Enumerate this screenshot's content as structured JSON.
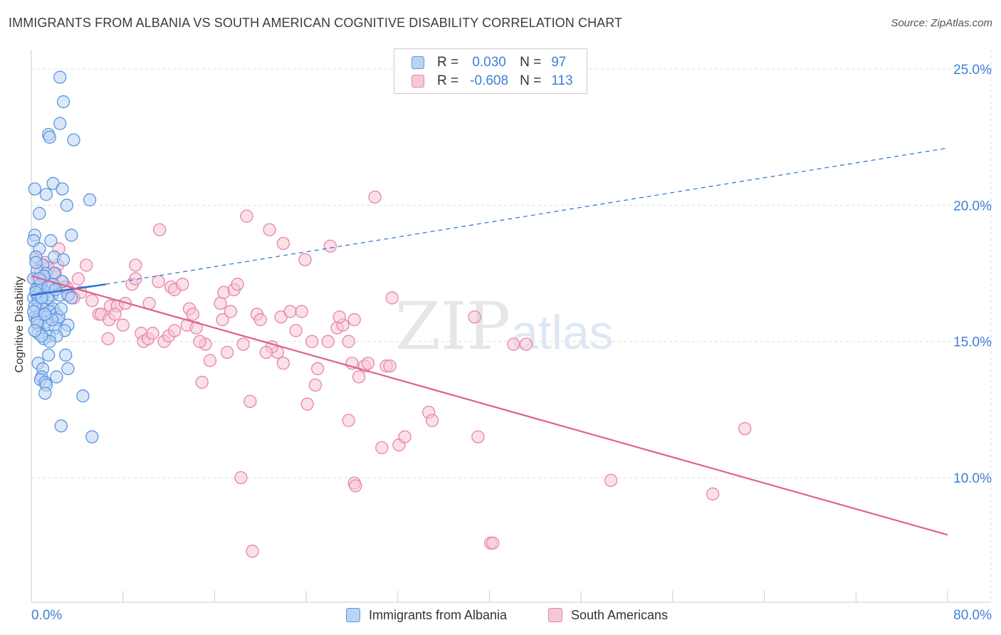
{
  "title": "IMMIGRANTS FROM ALBANIA VS SOUTH AMERICAN COGNITIVE DISABILITY CORRELATION CHART",
  "source": "Source: ZipAtlas.com",
  "watermark": {
    "zip": "ZIP",
    "atlas": "atlas"
  },
  "colors": {
    "blue": "#5b95e0",
    "blue_fill": "#bcd4f4",
    "blue_line": "#2f6fd0",
    "pink": "#e884a6",
    "pink_fill": "#f6c7d7",
    "pink_line": "#e0608e",
    "tick_text": "#3f7fd6",
    "grid": "#dddddd"
  },
  "legend": {
    "rows": [
      {
        "r_label": "R =",
        "r_value": "0.030",
        "n_label": "N =",
        "n_value": "97"
      },
      {
        "r_label": "R =",
        "r_value": "-0.608",
        "n_label": "N =",
        "n_value": "113"
      }
    ]
  },
  "bottom_legend": [
    "Immigrants from Albania",
    "South Americans"
  ],
  "chart_data": {
    "type": "scatter",
    "title": "IMMIGRANTS FROM ALBANIA VS SOUTH AMERICAN COGNITIVE DISABILITY CORRELATION CHART",
    "xlabel": "",
    "ylabel": "Cognitive Disability",
    "xlim": [
      0,
      80
    ],
    "ylim": [
      5.5,
      25.9
    ],
    "x_tick_labels": [
      {
        "value": 0,
        "label": "0.0%"
      },
      {
        "value": 80,
        "label": "80.0%"
      }
    ],
    "y_tick_labels": [
      {
        "value": 25,
        "label": "25.0%"
      },
      {
        "value": 20,
        "label": "20.0%"
      },
      {
        "value": 15,
        "label": "15.0%"
      },
      {
        "value": 10,
        "label": "10.0%"
      }
    ],
    "grid": true,
    "series": [
      {
        "name": "Immigrants from Albania",
        "R": 0.03,
        "N": 97,
        "trend": {
          "solid": [
            [
              0,
              16.7
            ],
            [
              6.5,
              17.1
            ]
          ],
          "dashed": [
            [
              6.5,
              17.1
            ],
            [
              80,
              22.1
            ]
          ]
        },
        "points": [
          [
            2.5,
            24.7
          ],
          [
            2.8,
            23.8
          ],
          [
            2.5,
            23.0
          ],
          [
            1.5,
            22.6
          ],
          [
            1.6,
            22.5
          ],
          [
            3.7,
            22.4
          ],
          [
            0.3,
            20.6
          ],
          [
            1.9,
            20.8
          ],
          [
            2.7,
            20.6
          ],
          [
            1.3,
            20.4
          ],
          [
            3.1,
            20.0
          ],
          [
            5.1,
            20.2
          ],
          [
            0.7,
            19.7
          ],
          [
            0.3,
            18.9
          ],
          [
            3.5,
            18.9
          ],
          [
            0.2,
            18.7
          ],
          [
            1.7,
            18.7
          ],
          [
            0.7,
            18.4
          ],
          [
            0.4,
            18.1
          ],
          [
            2.0,
            18.1
          ],
          [
            2.8,
            18.0
          ],
          [
            1.0,
            17.8
          ],
          [
            0.5,
            17.6
          ],
          [
            1.3,
            17.5
          ],
          [
            2.0,
            17.5
          ],
          [
            0.2,
            17.3
          ],
          [
            1.0,
            17.2
          ],
          [
            0.6,
            17.0
          ],
          [
            1.7,
            17.0
          ],
          [
            2.7,
            17.2
          ],
          [
            0.8,
            17.1
          ],
          [
            1.9,
            17.1
          ],
          [
            0.4,
            16.9
          ],
          [
            1.3,
            16.8
          ],
          [
            0.5,
            16.7
          ],
          [
            1.0,
            16.7
          ],
          [
            1.8,
            16.7
          ],
          [
            2.5,
            16.7
          ],
          [
            3.2,
            16.7
          ],
          [
            3.5,
            16.6
          ],
          [
            0.2,
            16.6
          ],
          [
            0.6,
            16.5
          ],
          [
            0.9,
            16.4
          ],
          [
            1.4,
            16.3
          ],
          [
            1.9,
            16.2
          ],
          [
            0.5,
            16.2
          ],
          [
            1.0,
            16.2
          ],
          [
            1.6,
            16.1
          ],
          [
            0.7,
            16.0
          ],
          [
            1.3,
            15.9
          ],
          [
            2.2,
            16.0
          ],
          [
            0.3,
            15.9
          ],
          [
            0.5,
            15.8
          ],
          [
            1.2,
            15.7
          ],
          [
            2.3,
            15.8
          ],
          [
            3.2,
            15.6
          ],
          [
            0.6,
            15.6
          ],
          [
            1.5,
            15.6
          ],
          [
            2.1,
            15.5
          ],
          [
            2.9,
            15.4
          ],
          [
            0.6,
            15.3
          ],
          [
            1.6,
            15.2
          ],
          [
            2.2,
            15.2
          ],
          [
            1.1,
            15.1
          ],
          [
            1.6,
            15.0
          ],
          [
            1.5,
            14.5
          ],
          [
            3.0,
            14.5
          ],
          [
            0.6,
            14.2
          ],
          [
            1.0,
            14.0
          ],
          [
            3.2,
            14.0
          ],
          [
            0.9,
            13.7
          ],
          [
            0.8,
            13.6
          ],
          [
            2.2,
            13.7
          ],
          [
            1.2,
            13.5
          ],
          [
            1.3,
            13.4
          ],
          [
            1.2,
            13.1
          ],
          [
            4.5,
            13.0
          ],
          [
            2.6,
            11.9
          ],
          [
            5.3,
            11.5
          ],
          [
            0.3,
            16.3
          ],
          [
            0.5,
            15.7
          ],
          [
            0.8,
            16.9
          ],
          [
            1.1,
            17.4
          ],
          [
            1.4,
            16.6
          ],
          [
            2.4,
            15.9
          ],
          [
            0.4,
            17.9
          ],
          [
            0.9,
            15.2
          ],
          [
            1.8,
            15.8
          ],
          [
            2.6,
            16.2
          ],
          [
            0.3,
            15.4
          ],
          [
            0.2,
            16.1
          ],
          [
            1.5,
            17.0
          ],
          [
            0.7,
            17.3
          ],
          [
            2.1,
            16.9
          ],
          [
            1.2,
            16.0
          ],
          [
            0.4,
            16.8
          ],
          [
            0.9,
            16.6
          ]
        ]
      },
      {
        "name": "South Americans",
        "R": -0.608,
        "N": 113,
        "trend": {
          "solid": [
            [
              0,
              17.4
            ],
            [
              80,
              7.9
            ]
          ]
        },
        "points": [
          [
            0.4,
            18.1
          ],
          [
            1.0,
            17.8
          ],
          [
            1.2,
            17.9
          ],
          [
            2.3,
            17.8
          ],
          [
            1.8,
            17.4
          ],
          [
            0.5,
            17.3
          ],
          [
            2.1,
            17.5
          ],
          [
            2.6,
            17.2
          ],
          [
            3.1,
            17.0
          ],
          [
            4.1,
            17.3
          ],
          [
            3.3,
            16.7
          ],
          [
            4.3,
            16.8
          ],
          [
            0.8,
            17.6
          ],
          [
            1.5,
            17.7
          ],
          [
            2.4,
            18.4
          ],
          [
            4.8,
            17.8
          ],
          [
            8.8,
            17.1
          ],
          [
            9.1,
            17.3
          ],
          [
            9.1,
            17.8
          ],
          [
            11.2,
            19.1
          ],
          [
            11.1,
            17.2
          ],
          [
            12.2,
            17.0
          ],
          [
            12.5,
            16.9
          ],
          [
            13.2,
            17.1
          ],
          [
            5.3,
            16.5
          ],
          [
            6.9,
            16.3
          ],
          [
            7.5,
            16.3
          ],
          [
            8.2,
            16.4
          ],
          [
            10.3,
            16.4
          ],
          [
            13.8,
            16.2
          ],
          [
            14.1,
            16.0
          ],
          [
            16.5,
            16.4
          ],
          [
            16.8,
            16.8
          ],
          [
            17.7,
            16.9
          ],
          [
            18.0,
            17.1
          ],
          [
            18.8,
            19.6
          ],
          [
            20.8,
            19.1
          ],
          [
            22.0,
            18.6
          ],
          [
            23.9,
            18.0
          ],
          [
            26.1,
            18.5
          ],
          [
            5.9,
            16.0
          ],
          [
            6.1,
            16.0
          ],
          [
            6.8,
            15.8
          ],
          [
            7.3,
            16.0
          ],
          [
            8.0,
            15.6
          ],
          [
            9.6,
            15.3
          ],
          [
            9.8,
            15.0
          ],
          [
            10.2,
            15.1
          ],
          [
            10.6,
            15.3
          ],
          [
            11.6,
            15.0
          ],
          [
            12.0,
            15.2
          ],
          [
            12.5,
            15.4
          ],
          [
            13.6,
            15.6
          ],
          [
            14.4,
            15.5
          ],
          [
            15.2,
            14.9
          ],
          [
            14.7,
            15.0
          ],
          [
            16.7,
            15.8
          ],
          [
            17.4,
            16.1
          ],
          [
            19.7,
            16.0
          ],
          [
            20.0,
            15.8
          ],
          [
            21.8,
            15.9
          ],
          [
            22.6,
            16.1
          ],
          [
            23.6,
            16.1
          ],
          [
            23.1,
            15.4
          ],
          [
            24.5,
            15.0
          ],
          [
            25.9,
            15.0
          ],
          [
            26.7,
            15.5
          ],
          [
            27.2,
            15.6
          ],
          [
            26.9,
            15.9
          ],
          [
            27.7,
            15.0
          ],
          [
            28.2,
            15.8
          ],
          [
            30.0,
            20.3
          ],
          [
            31.5,
            16.6
          ],
          [
            31.0,
            14.1
          ],
          [
            25.0,
            14.0
          ],
          [
            22.0,
            14.2
          ],
          [
            21.5,
            14.6
          ],
          [
            21.0,
            14.8
          ],
          [
            20.5,
            14.6
          ],
          [
            17.1,
            14.6
          ],
          [
            18.5,
            14.9
          ],
          [
            15.6,
            14.3
          ],
          [
            14.9,
            13.5
          ],
          [
            19.1,
            12.8
          ],
          [
            24.8,
            13.4
          ],
          [
            24.1,
            12.7
          ],
          [
            27.7,
            12.1
          ],
          [
            28.6,
            13.7
          ],
          [
            28.0,
            14.2
          ],
          [
            29.1,
            14.1
          ],
          [
            29.4,
            14.2
          ],
          [
            31.3,
            14.1
          ],
          [
            34.7,
            12.4
          ],
          [
            35.0,
            12.1
          ],
          [
            39.0,
            11.5
          ],
          [
            32.1,
            11.2
          ],
          [
            30.6,
            11.1
          ],
          [
            32.6,
            11.5
          ],
          [
            28.2,
            9.8
          ],
          [
            28.3,
            9.7
          ],
          [
            42.1,
            14.9
          ],
          [
            43.2,
            14.9
          ],
          [
            38.7,
            15.9
          ],
          [
            18.3,
            10.0
          ],
          [
            50.6,
            9.9
          ],
          [
            59.5,
            9.4
          ],
          [
            62.3,
            11.8
          ],
          [
            40.1,
            7.6
          ],
          [
            40.3,
            7.6
          ],
          [
            19.3,
            7.3
          ],
          [
            6.7,
            15.1
          ],
          [
            3.7,
            16.6
          ],
          [
            2.9,
            17.0
          ]
        ]
      }
    ]
  }
}
